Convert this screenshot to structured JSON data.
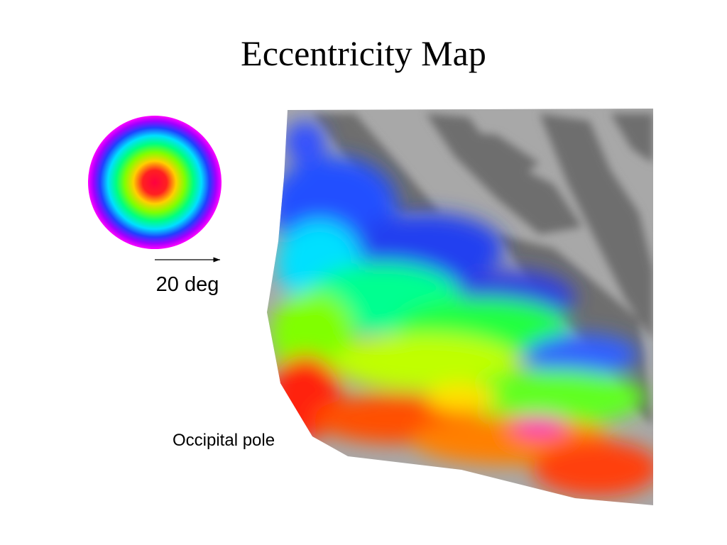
{
  "slide": {
    "title": "Eccentricity Map",
    "scale_label": "20 deg",
    "annotation": "Occipital pole"
  }
}
